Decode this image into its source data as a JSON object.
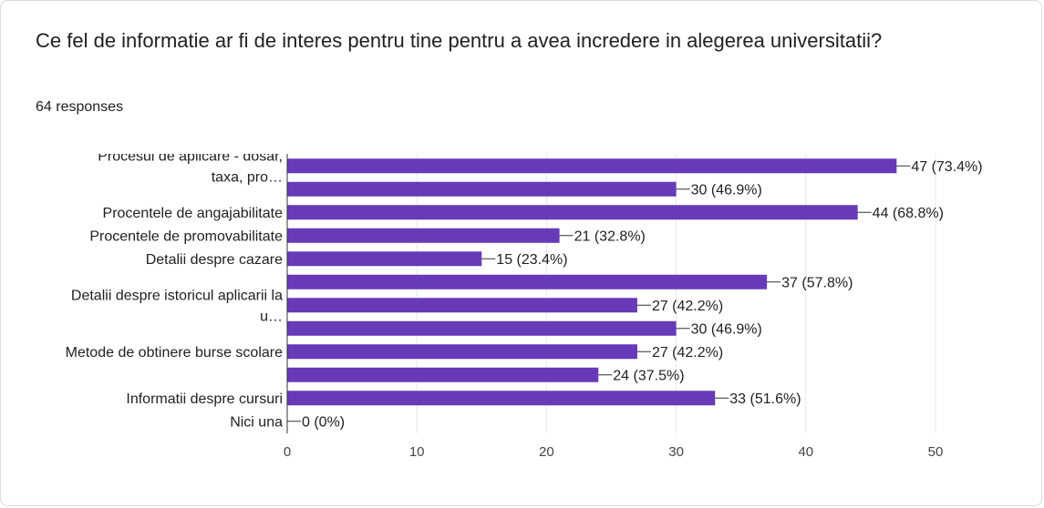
{
  "question": {
    "title": "Ce fel de informatie ar fi de interes pentru tine pentru a avea incredere in alegerea universitatii?",
    "responses": "64 responses"
  },
  "colors": {
    "bar": "#673ab7",
    "text": "#202124",
    "axis": "#333333",
    "grid": "#e8e8e8",
    "border": "#dadce0"
  },
  "chart_data": {
    "type": "bar",
    "orientation": "horizontal",
    "categories": [
      [
        "Procesul de aplicare - dosar,",
        "taxa, pro…"
      ],
      [],
      [
        "Procentele de angajabilitate"
      ],
      [
        "Procentele de promovabilitate"
      ],
      [
        "Detalii despre cazare"
      ],
      [],
      [
        "Detalii despre istoricul aplicarii la",
        "u…"
      ],
      [],
      [
        "Metode de obtinere burse scolare"
      ],
      [],
      [
        "Informatii despre cursuri"
      ],
      [
        "Nici una"
      ]
    ],
    "values": [
      47,
      30,
      44,
      21,
      15,
      37,
      27,
      30,
      27,
      24,
      33,
      0
    ],
    "data_labels": [
      "47 (73.4%)",
      "30 (46.9%)",
      "44 (68.8%)",
      "21 (32.8%)",
      "15 (23.4%)",
      "37 (57.8%)",
      "27 (42.2%)",
      "30 (46.9%)",
      "27 (42.2%)",
      "24 (37.5%)",
      "33 (51.6%)",
      "0 (0%)"
    ],
    "xlim": [
      0,
      50
    ],
    "xticks": [
      0,
      10,
      20,
      30,
      40,
      50
    ],
    "grid": true
  }
}
